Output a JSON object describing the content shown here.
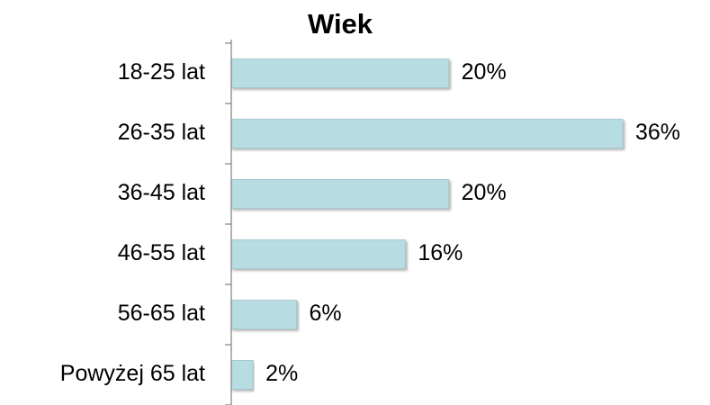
{
  "chart_data": {
    "type": "bar",
    "orientation": "horizontal",
    "title": "Wiek",
    "categories": [
      "18-25 lat",
      "26-35 lat",
      "36-45 lat",
      "46-55 lat",
      "56-65 lat",
      "Powyżej 65 lat"
    ],
    "values": [
      20,
      36,
      20,
      16,
      6,
      2
    ],
    "value_labels": [
      "20%",
      "36%",
      "20%",
      "16%",
      "6%",
      "2%"
    ],
    "color": "#b7dde3"
  }
}
